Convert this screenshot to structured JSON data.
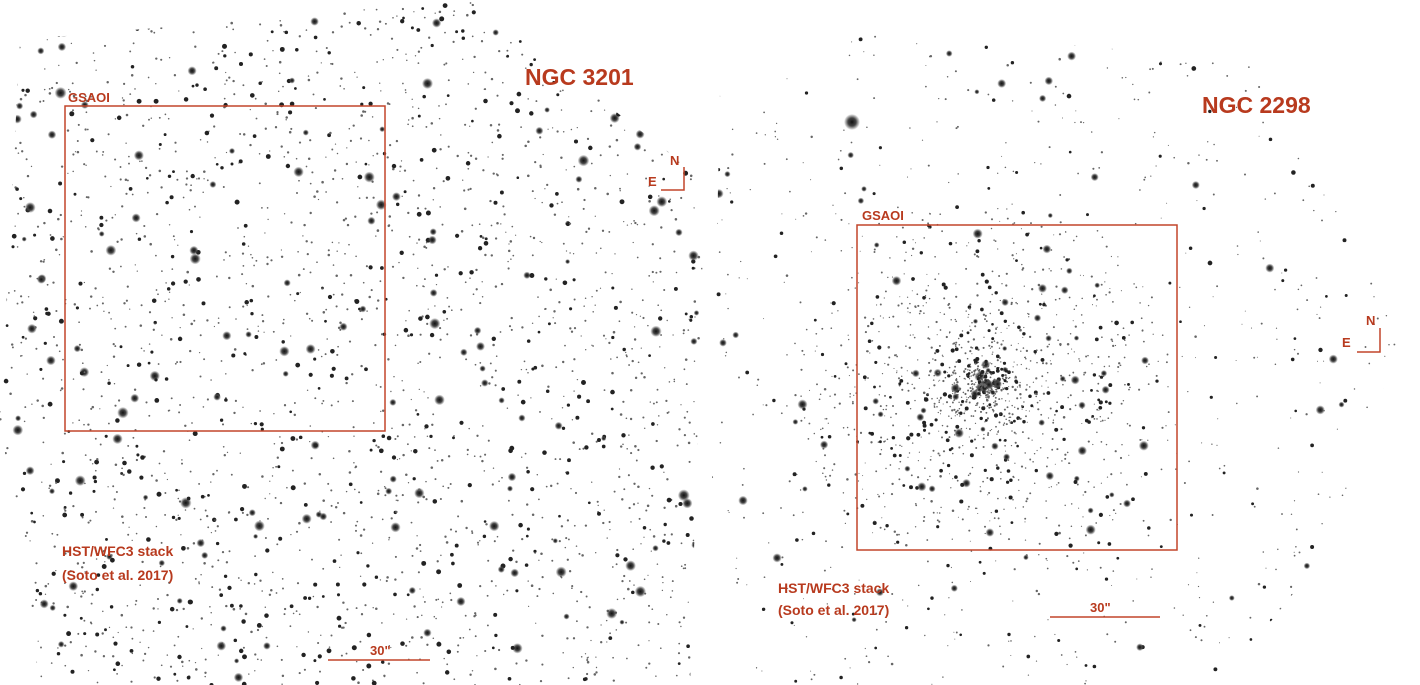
{
  "panels": [
    {
      "title": "NGC 3201",
      "box_label": "GSAOI",
      "compass_n": "N",
      "compass_e": "E",
      "source": [
        "HST/WFC3 stack",
        "(Soto et al. 2017)"
      ],
      "scale": "30\""
    },
    {
      "title": "NGC 2298",
      "box_label": "GSAOI",
      "compass_n": "N",
      "compass_e": "E",
      "source": [
        "HST/WFC3 stack",
        "(Soto et al. 2017)"
      ],
      "scale": "30\""
    }
  ]
}
